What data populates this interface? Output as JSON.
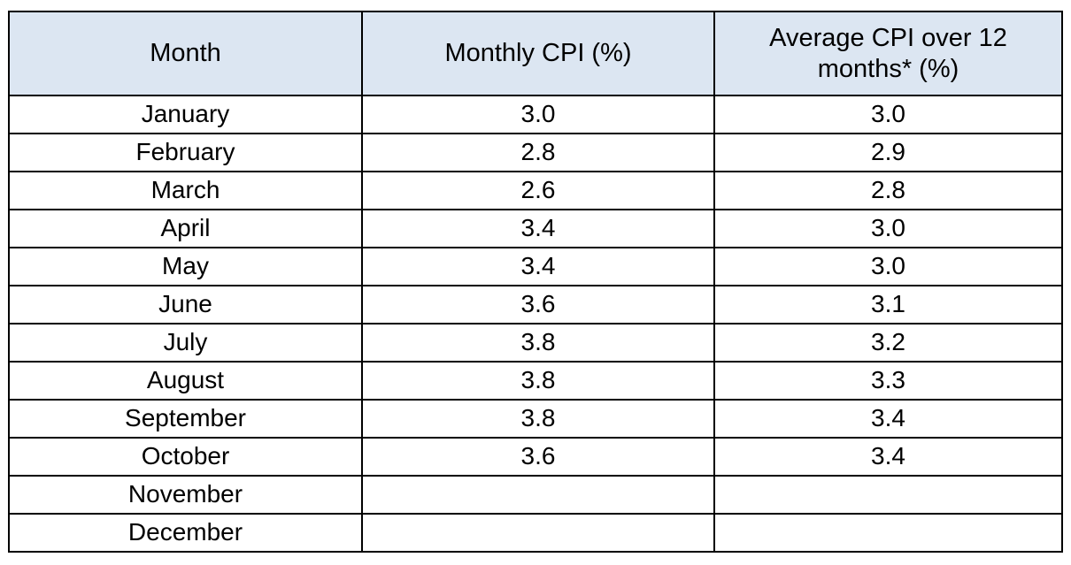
{
  "table": {
    "headers": [
      "Month",
      "Monthly CPI (%)",
      "Average CPI over 12 months* (%)"
    ],
    "rows": [
      {
        "month": "January",
        "monthly_cpi": "3.0",
        "avg_cpi": "3.0"
      },
      {
        "month": "February",
        "monthly_cpi": "2.8",
        "avg_cpi": "2.9"
      },
      {
        "month": "March",
        "monthly_cpi": "2.6",
        "avg_cpi": "2.8"
      },
      {
        "month": "April",
        "monthly_cpi": "3.4",
        "avg_cpi": "3.0"
      },
      {
        "month": "May",
        "monthly_cpi": "3.4",
        "avg_cpi": "3.0"
      },
      {
        "month": "June",
        "monthly_cpi": "3.6",
        "avg_cpi": "3.1"
      },
      {
        "month": "July",
        "monthly_cpi": "3.8",
        "avg_cpi": "3.2"
      },
      {
        "month": "August",
        "monthly_cpi": "3.8",
        "avg_cpi": "3.3"
      },
      {
        "month": "September",
        "monthly_cpi": "3.8",
        "avg_cpi": "3.4"
      },
      {
        "month": "October",
        "monthly_cpi": "3.6",
        "avg_cpi": "3.4"
      },
      {
        "month": "November",
        "monthly_cpi": "",
        "avg_cpi": ""
      },
      {
        "month": "December",
        "monthly_cpi": "",
        "avg_cpi": ""
      }
    ]
  },
  "colors": {
    "header_bg": "#DCE6F2",
    "border": "#000000",
    "text": "#000000"
  }
}
